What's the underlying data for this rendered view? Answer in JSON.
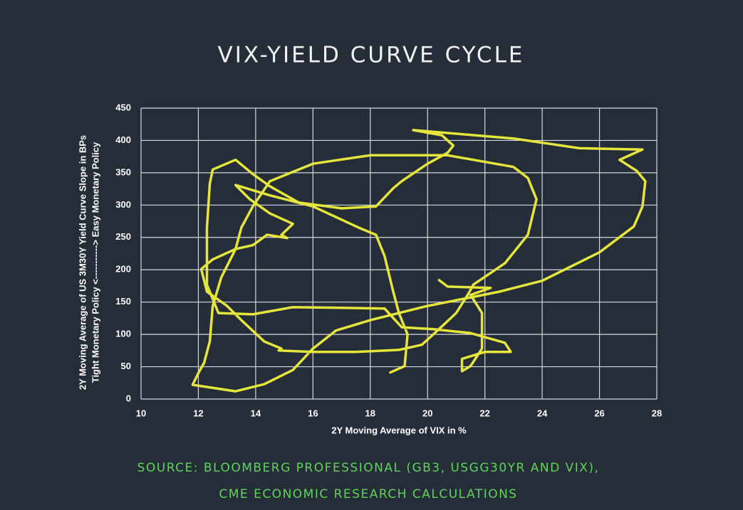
{
  "chart_data": {
    "type": "line",
    "title": "VIX-YIELD CURVE CYCLE",
    "x_label": "2Y Moving Average of VIX in %",
    "y_label_lines": [
      "2Y Moving Average of US 3M30Y Yield Curve Slope in BPs",
      "Tight Monetary Policy <-----------> Easy Monetary Policy"
    ],
    "source_lines": [
      "SOURCE: BLOOMBERG PROFESSIONAL (GB3, USGG30YR AND VIX),",
      "CME ECONOMIC RESEARCH CALCULATIONS"
    ],
    "color": "#e6e53c",
    "grid": true,
    "xlim": [
      10,
      28
    ],
    "xticks": [
      10,
      12,
      14,
      16,
      18,
      20,
      22,
      24,
      26,
      28
    ],
    "ylim": [
      0,
      450
    ],
    "yticks": [
      0,
      50,
      100,
      150,
      200,
      250,
      300,
      350,
      400,
      450
    ],
    "x": [
      18.7,
      19.2,
      19.3,
      19.0,
      18.8,
      18.5,
      18.2,
      17.6,
      16.0,
      14.5,
      13.3,
      13.8,
      14.5,
      15.3,
      14.9,
      15.1,
      14.4,
      13.9,
      13.3,
      12.5,
      12.1,
      12.3,
      13.0,
      13.5,
      14.3,
      14.9,
      14.8,
      16.0,
      17.5,
      19.0,
      19.8,
      20.2,
      21.0,
      21.4,
      21.6,
      22.7,
      23.5,
      23.8,
      23.5,
      23.0,
      20.7,
      18.0,
      16.0,
      14.5,
      13.9,
      13.5,
      13.3,
      12.8,
      12.5,
      12.4,
      12.2,
      12.0,
      11.8,
      13.3,
      14.3,
      15.3,
      16.0,
      16.8,
      18.0,
      20.0,
      22.5,
      24.0,
      26.0,
      27.2,
      27.5,
      27.6,
      27.3,
      26.7,
      27.5,
      25.3,
      23.0,
      19.5,
      20.5,
      20.9,
      20.7,
      20.0,
      19.1,
      18.8,
      18.2,
      17.0,
      15.5,
      14.5,
      13.9,
      13.3,
      12.5,
      12.4,
      12.3,
      12.3,
      12.7,
      13.9,
      15.3,
      17.0,
      18.5,
      19.1,
      20.2,
      21.5,
      22.7,
      22.9,
      22.0,
      21.2,
      21.2,
      21.5,
      21.9,
      21.9,
      21.5,
      22.2,
      20.7,
      20.4
    ],
    "values": [
      41,
      51,
      100,
      133,
      166,
      221,
      254,
      265,
      298,
      315,
      331,
      309,
      287,
      271,
      254,
      249,
      254,
      238,
      232,
      216,
      201,
      166,
      144,
      122,
      89,
      78,
      75,
      73,
      73,
      76,
      84,
      100,
      133,
      161,
      177,
      210,
      254,
      309,
      342,
      359,
      377,
      377,
      364,
      337,
      298,
      265,
      232,
      188,
      144,
      89,
      56,
      40,
      22,
      12,
      23,
      45,
      78,
      106,
      122,
      144,
      166,
      183,
      227,
      267,
      298,
      337,
      353,
      370,
      386,
      388,
      403,
      416,
      408,
      392,
      381,
      364,
      337,
      326,
      298,
      295,
      304,
      329,
      348,
      370,
      355,
      333,
      265,
      177,
      133,
      131,
      142,
      141,
      140,
      111,
      108,
      102,
      87,
      73,
      73,
      62,
      43,
      51,
      78,
      133,
      161,
      172,
      174,
      184
    ]
  }
}
